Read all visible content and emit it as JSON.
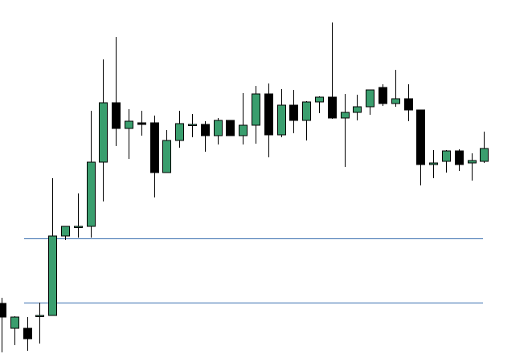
{
  "chart_data": {
    "type": "candlestick",
    "title": "",
    "xlabel": "",
    "ylabel": "",
    "grid": false,
    "legend": "none",
    "ylim": [
      0,
      451
    ],
    "colors": {
      "bull": "#3a9e6e",
      "bear": "#000000",
      "wick": "#000000",
      "level_line": "#3a6fb0",
      "background": "#ffffff"
    },
    "candles": [
      {
        "o": 73,
        "h": 80,
        "l": 12,
        "c": 56
      },
      {
        "o": 42,
        "h": 57,
        "l": 21,
        "c": 56
      },
      {
        "o": 42,
        "h": 56,
        "l": 14,
        "c": 29
      },
      {
        "o": 58,
        "h": 74,
        "l": 23,
        "c": 58
      },
      {
        "o": 58,
        "h": 229,
        "l": 58,
        "c": 157
      },
      {
        "o": 157,
        "h": 169,
        "l": 152,
        "c": 169
      },
      {
        "o": 169,
        "h": 210,
        "l": 155,
        "c": 169
      },
      {
        "o": 169,
        "h": 313,
        "l": 155,
        "c": 249
      },
      {
        "o": 249,
        "h": 377,
        "l": 200,
        "c": 323
      },
      {
        "o": 323,
        "h": 405,
        "l": 269,
        "c": 291
      },
      {
        "o": 291,
        "h": 315,
        "l": 253,
        "c": 300
      },
      {
        "o": 298,
        "h": 313,
        "l": 282,
        "c": 296
      },
      {
        "o": 298,
        "h": 307,
        "l": 205,
        "c": 236
      },
      {
        "o": 236,
        "h": 289,
        "l": 236,
        "c": 276
      },
      {
        "o": 276,
        "h": 313,
        "l": 267,
        "c": 297
      },
      {
        "o": 296,
        "h": 309,
        "l": 280,
        "c": 296
      },
      {
        "o": 296,
        "h": 300,
        "l": 262,
        "c": 282
      },
      {
        "o": 282,
        "h": 304,
        "l": 271,
        "c": 301
      },
      {
        "o": 301,
        "h": 301,
        "l": 282,
        "c": 282
      },
      {
        "o": 282,
        "h": 335,
        "l": 271,
        "c": 295
      },
      {
        "o": 295,
        "h": 344,
        "l": 272,
        "c": 334
      },
      {
        "o": 334,
        "h": 347,
        "l": 255,
        "c": 283
      },
      {
        "o": 283,
        "h": 340,
        "l": 280,
        "c": 320
      },
      {
        "o": 320,
        "h": 339,
        "l": 285,
        "c": 301
      },
      {
        "o": 301,
        "h": 325,
        "l": 276,
        "c": 324
      },
      {
        "o": 324,
        "h": 331,
        "l": 310,
        "c": 330
      },
      {
        "o": 330,
        "h": 423,
        "l": 303,
        "c": 304
      },
      {
        "o": 304,
        "h": 334,
        "l": 243,
        "c": 311
      },
      {
        "o": 311,
        "h": 333,
        "l": 301,
        "c": 318
      },
      {
        "o": 318,
        "h": 339,
        "l": 308,
        "c": 339
      },
      {
        "o": 342,
        "h": 346,
        "l": 319,
        "c": 322
      },
      {
        "o": 322,
        "h": 364,
        "l": 318,
        "c": 328
      },
      {
        "o": 328,
        "h": 346,
        "l": 300,
        "c": 314
      },
      {
        "o": 314,
        "h": 314,
        "l": 220,
        "c": 246
      },
      {
        "o": 246,
        "h": 264,
        "l": 229,
        "c": 248
      },
      {
        "o": 250,
        "h": 264,
        "l": 236,
        "c": 263
      },
      {
        "o": 263,
        "h": 265,
        "l": 238,
        "c": 246
      },
      {
        "o": 248,
        "h": 260,
        "l": 226,
        "c": 251
      },
      {
        "o": 250,
        "h": 287,
        "l": 248,
        "c": 266
      }
    ],
    "levels": [
      {
        "value": 154
      },
      {
        "value": 74
      }
    ]
  }
}
